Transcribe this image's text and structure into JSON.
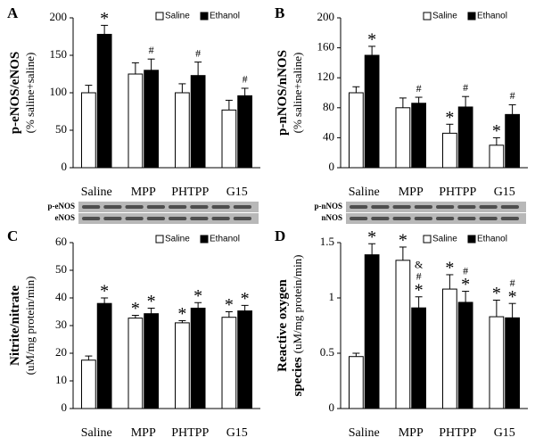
{
  "chart_data": [
    {
      "type": "bar",
      "panel": "A",
      "ylabel": [
        "p-eNOS/eNOS"
      ],
      "ysub": "(% saline+saline)",
      "categories": [
        "Saline",
        "MPP",
        "PHTPP",
        "G15"
      ],
      "ylim": [
        0,
        200
      ],
      "yticks": [
        0,
        50,
        100,
        150,
        200
      ],
      "blot_labels": [
        "p-eNOS",
        "eNOS"
      ],
      "series": [
        {
          "name": "Saline",
          "color": "#ffffff",
          "values": [
            100,
            125,
            100,
            77
          ],
          "errors": [
            10,
            15,
            12,
            13
          ],
          "annotations": [
            null,
            null,
            null,
            null
          ]
        },
        {
          "name": "Ethanol",
          "color": "#000000",
          "values": [
            178,
            130,
            123,
            96
          ],
          "errors": [
            12,
            15,
            18,
            10
          ],
          "annotations": [
            [
              "*"
            ],
            [
              "#"
            ],
            [
              "#"
            ],
            [
              "#"
            ]
          ]
        }
      ]
    },
    {
      "type": "bar",
      "panel": "B",
      "ylabel": [
        "p-nNOS/nNOS"
      ],
      "ysub": "(% saline+saline)",
      "categories": [
        "Saline",
        "MPP",
        "PHTPP",
        "G15"
      ],
      "ylim": [
        0,
        200
      ],
      "yticks": [
        0,
        40,
        80,
        120,
        160,
        200
      ],
      "blot_labels": [
        "p-nNOS",
        "nNOS"
      ],
      "series": [
        {
          "name": "Saline",
          "color": "#ffffff",
          "values": [
            100,
            80,
            46,
            30
          ],
          "errors": [
            8,
            13,
            12,
            10
          ],
          "annotations": [
            null,
            null,
            [
              "*"
            ],
            [
              "*"
            ]
          ]
        },
        {
          "name": "Ethanol",
          "color": "#000000",
          "values": [
            150,
            86,
            81,
            71
          ],
          "errors": [
            12,
            8,
            14,
            13
          ],
          "annotations": [
            [
              "*"
            ],
            [
              "#"
            ],
            [
              "#"
            ],
            [
              "#"
            ]
          ]
        }
      ]
    },
    {
      "type": "bar",
      "panel": "C",
      "ylabel": [
        "Nitrite/nitrate"
      ],
      "ysub": "(uM/mg protein/min)",
      "categories": [
        "Saline",
        "MPP",
        "PHTPP",
        "G15"
      ],
      "ylim": [
        0,
        60
      ],
      "yticks": [
        0,
        10,
        20,
        30,
        40,
        50,
        60
      ],
      "series": [
        {
          "name": "Saline",
          "color": "#ffffff",
          "values": [
            17.5,
            32.7,
            31,
            33
          ],
          "errors": [
            1.5,
            1,
            0.8,
            2
          ],
          "annotations": [
            null,
            [
              "*"
            ],
            [
              "*"
            ],
            [
              "*"
            ]
          ]
        },
        {
          "name": "Ethanol",
          "color": "#000000",
          "values": [
            38,
            34.3,
            36.3,
            35.3
          ],
          "errors": [
            2,
            2,
            2,
            2
          ],
          "annotations": [
            [
              "*"
            ],
            [
              "*"
            ],
            [
              "*"
            ],
            [
              "*"
            ]
          ]
        }
      ]
    },
    {
      "type": "bar",
      "panel": "D",
      "ylabel": [
        "Reactive oxygen",
        "species"
      ],
      "ysub": "(uM/mg protein/min)",
      "categories": [
        "Saline",
        "MPP",
        "PHTPP",
        "G15"
      ],
      "ylim": [
        0,
        1.5
      ],
      "yticks": [
        0,
        0.5,
        1,
        1.5
      ],
      "series": [
        {
          "name": "Saline",
          "color": "#ffffff",
          "values": [
            0.47,
            1.34,
            1.08,
            0.83
          ],
          "errors": [
            0.03,
            0.12,
            0.13,
            0.15
          ],
          "annotations": [
            null,
            [
              "*"
            ],
            [
              "*"
            ],
            [
              "*"
            ]
          ]
        },
        {
          "name": "Ethanol",
          "color": "#000000",
          "values": [
            1.39,
            0.91,
            0.96,
            0.82
          ],
          "errors": [
            0.1,
            0.1,
            0.1,
            0.13
          ],
          "annotations": [
            [
              "*"
            ],
            [
              "&",
              "#",
              "*"
            ],
            [
              "#",
              "*"
            ],
            [
              "#",
              "*"
            ]
          ]
        }
      ]
    }
  ]
}
